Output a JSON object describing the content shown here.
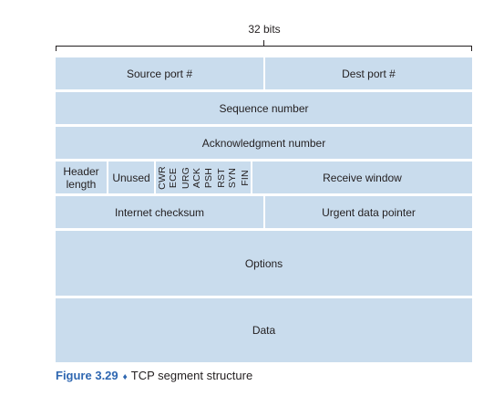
{
  "bits_label": "32 bits",
  "fields": {
    "source_port": "Source port #",
    "dest_port": "Dest port #",
    "sequence_number": "Sequence number",
    "ack_number": "Acknowledgment number",
    "header_length_line1": "Header",
    "header_length_line2": "length",
    "unused": "Unused",
    "flags": [
      "CWR",
      "ECE",
      "URG",
      "ACK",
      "PSH",
      "RST",
      "SYN",
      "FIN"
    ],
    "receive_window": "Receive window",
    "internet_checksum": "Internet checksum",
    "urgent_pointer": "Urgent data pointer",
    "options": "Options",
    "data": "Data"
  },
  "caption": {
    "figure_label": "Figure 3.29",
    "separator": "♦",
    "title": "TCP segment structure"
  },
  "colors": {
    "field_fill": "#c9dced",
    "caption_accent": "#2f67b1"
  }
}
